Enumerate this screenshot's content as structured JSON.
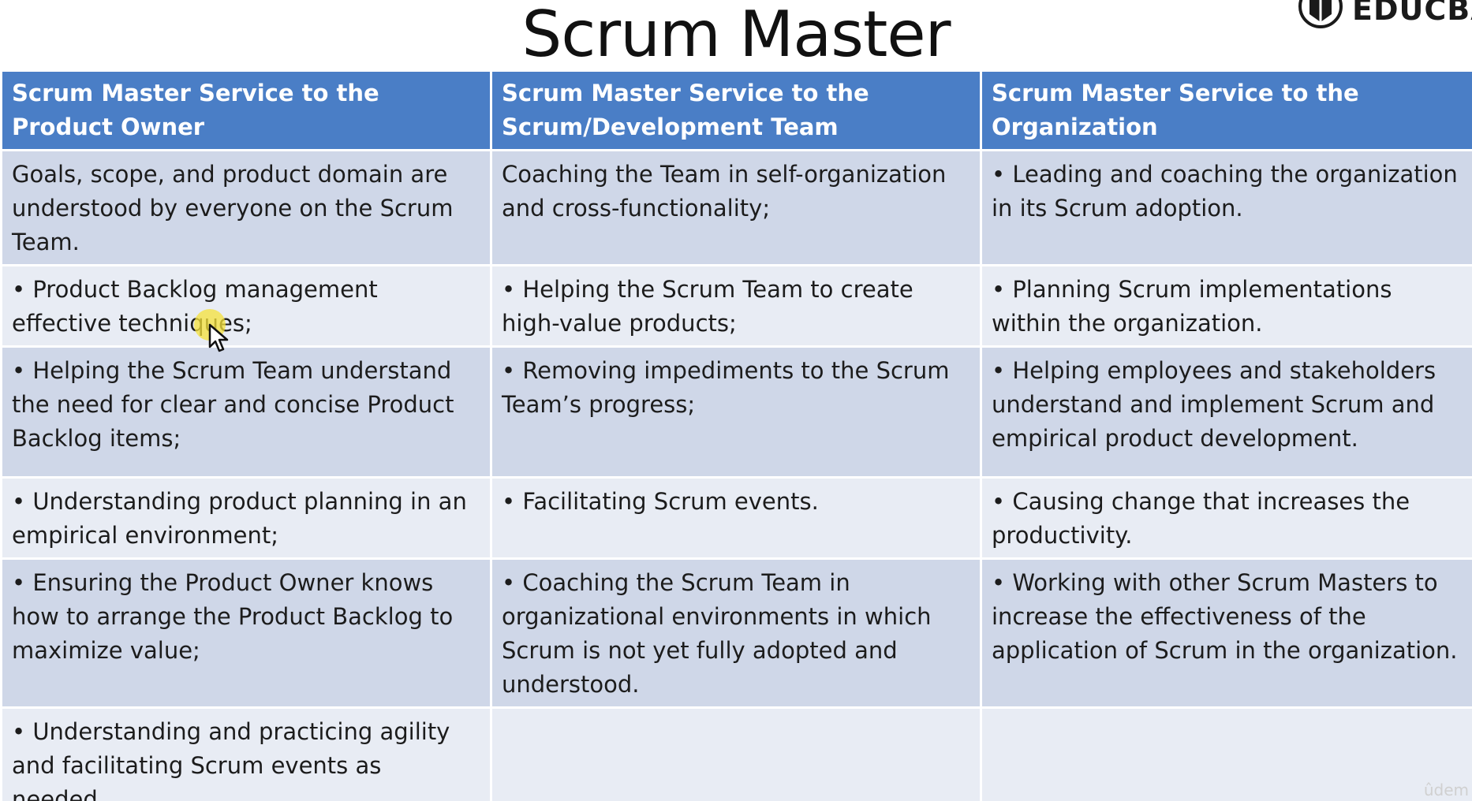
{
  "slide": {
    "title": "Scrum Master",
    "brand": "EDUCBA",
    "watermark": "ûdem"
  },
  "table": {
    "headers": [
      "Scrum Master Service to the Product Owner",
      "Scrum Master Service to the Scrum/Development Team",
      "Scrum Master Service to the Organization"
    ],
    "rows": [
      [
        "Goals, scope, and product domain are understood by everyone on the Scrum Team.",
        "Coaching the Team in self-organization and cross-functionality;",
        "• Leading and coaching the organization in its Scrum adoption."
      ],
      [
        "• Product Backlog management effective techniques;",
        "• Helping the Scrum Team to create high-value products;",
        "• Planning Scrum implementations within the organization."
      ],
      [
        "• Helping the Scrum Team understand the need for clear and concise Product Backlog items;",
        "• Removing impediments to the Scrum Team’s progress;",
        "• Helping employees and stakeholders understand and implement Scrum and empirical product development."
      ],
      [
        "• Understanding product planning in an empirical environment;",
        "• Facilitating Scrum events.",
        "• Causing change that increases the productivity."
      ],
      [
        "• Ensuring the Product Owner knows how to arrange the Product Backlog to maximize value;",
        "• Coaching the Scrum Team in organizational environments in which Scrum is not yet fully adopted and understood.",
        "• Working with other Scrum Masters to increase the effectiveness of the application of Scrum in the organization."
      ],
      [
        "• Understanding and practicing agility and facilitating Scrum events as needed.",
        "",
        ""
      ]
    ]
  },
  "colors": {
    "header_bg": "#4a7ec6",
    "row_dark": "#cfd7e8",
    "row_light": "#e8ecf4",
    "cursor_highlight": "#f5e23a"
  },
  "icons": {
    "logo": "educba-logo-icon",
    "cursor": "mouse-pointer-icon"
  }
}
